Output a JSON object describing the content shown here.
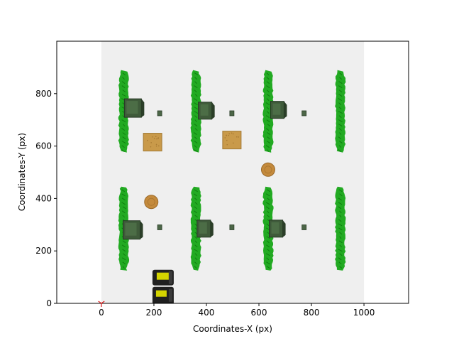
{
  "chart_data": {
    "type": "scatter",
    "title": "",
    "xlabel": "Coordinates-X (px)",
    "ylabel": "Coordinates-Y (px)",
    "xlim": [
      -170,
      1170
    ],
    "ylim": [
      0,
      1000
    ],
    "x_ticks": [
      0,
      200,
      400,
      600,
      800,
      1000
    ],
    "y_ticks": [
      0,
      200,
      400,
      600,
      800
    ],
    "grid": false,
    "legend": "none",
    "field": {
      "x": [
        0,
        1000
      ],
      "y": [
        0,
        1000
      ],
      "color": "#efefef"
    },
    "origin_marker": {
      "x": 0,
      "y": 0,
      "color": "#e02020"
    },
    "hedges": [
      {
        "x": 85,
        "y": [
          575,
          890
        ]
      },
      {
        "x": 360,
        "y": [
          575,
          890
        ]
      },
      {
        "x": 635,
        "y": [
          575,
          890
        ]
      },
      {
        "x": 910,
        "y": [
          575,
          890
        ]
      },
      {
        "x": 85,
        "y": [
          125,
          445
        ]
      },
      {
        "x": 360,
        "y": [
          125,
          445
        ]
      },
      {
        "x": 635,
        "y": [
          125,
          445
        ]
      },
      {
        "x": 910,
        "y": [
          125,
          445
        ]
      }
    ],
    "green_boxes": [
      {
        "x": 120,
        "y": 745,
        "size": "large"
      },
      {
        "x": 395,
        "y": 735,
        "size": "medium"
      },
      {
        "x": 670,
        "y": 738,
        "size": "medium"
      },
      {
        "x": 115,
        "y": 280,
        "size": "large"
      },
      {
        "x": 390,
        "y": 285,
        "size": "medium"
      },
      {
        "x": 665,
        "y": 285,
        "size": "medium"
      }
    ],
    "small_blocks": [
      {
        "x": 222,
        "y": 725
      },
      {
        "x": 497,
        "y": 725
      },
      {
        "x": 772,
        "y": 725
      },
      {
        "x": 222,
        "y": 290
      },
      {
        "x": 497,
        "y": 290
      },
      {
        "x": 772,
        "y": 290
      }
    ],
    "crates": [
      {
        "x": 195,
        "y": 615
      },
      {
        "x": 497,
        "y": 623
      }
    ],
    "barrels": [
      {
        "x": 635,
        "y": 510
      },
      {
        "x": 190,
        "y": 387
      }
    ],
    "robot": {
      "x": 235,
      "y": 55
    },
    "colors": {
      "hedge": "#22aa22",
      "green_box": "#3f5a3a",
      "crate": "#c99a4a",
      "barrel": "#c48a3c",
      "robot_body": "#202020",
      "robot_accent": "#d4d400"
    }
  }
}
